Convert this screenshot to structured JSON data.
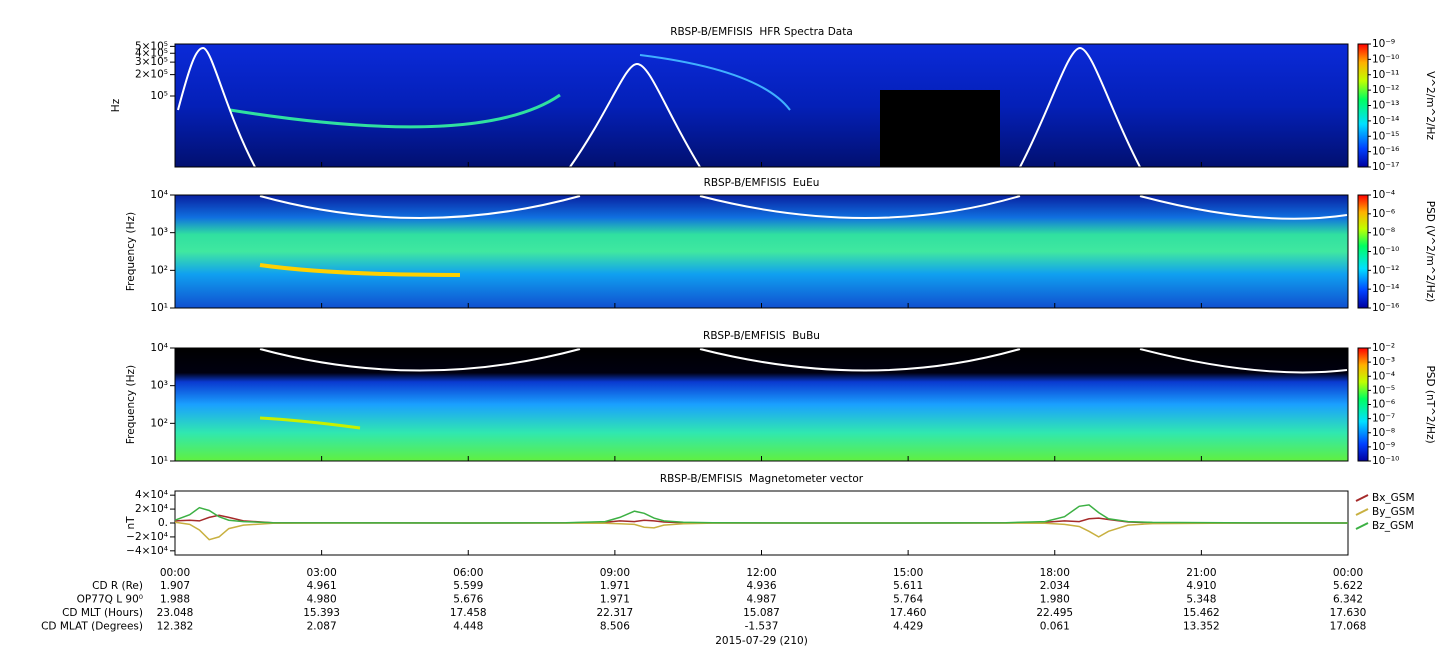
{
  "chart_data": [
    {
      "type": "spectrogram",
      "title": "RBSP-B/EMFISIS  HFR Spectra Data",
      "ylabel": "Hz",
      "log_y": true,
      "ylim": [
        10000,
        540000
      ],
      "yticks": [
        {
          "value": 500000,
          "label": "5×10⁵"
        },
        {
          "value": 400000,
          "label": "4×10⁵"
        },
        {
          "value": 300000,
          "label": "3×10⁵"
        },
        {
          "value": 200000,
          "label": "2×10⁵"
        },
        {
          "value": 100000,
          "label": "10⁵"
        }
      ],
      "colorbar": {
        "label": "V^2/m^2/Hz",
        "zlim": [
          1e-17,
          1e-09
        ],
        "ticks": [
          {
            "value": 1e-09,
            "label": "10⁻⁹"
          },
          {
            "value": 1e-10,
            "label": "10⁻¹⁰"
          },
          {
            "value": 1e-11,
            "label": "10⁻¹¹"
          },
          {
            "value": 1e-12,
            "label": "10⁻¹²"
          },
          {
            "value": 1e-13,
            "label": "10⁻¹³"
          },
          {
            "value": 1e-14,
            "label": "10⁻¹⁴"
          },
          {
            "value": 1e-15,
            "label": "10⁻¹⁵"
          },
          {
            "value": 1e-16,
            "label": "10⁻¹⁶"
          },
          {
            "value": 1e-17,
            "label": "10⁻¹⁷"
          }
        ]
      }
    },
    {
      "type": "spectrogram",
      "title": "RBSP-B/EMFISIS  EuEu",
      "ylabel": "Frequency (Hz)",
      "log_y": true,
      "ylim": [
        10,
        10000
      ],
      "yticks": [
        {
          "value": 10000,
          "label": "10⁴"
        },
        {
          "value": 1000,
          "label": "10³"
        },
        {
          "value": 100,
          "label": "10²"
        },
        {
          "value": 10,
          "label": "10¹"
        }
      ],
      "colorbar": {
        "label": "PSD (V^2/m^2/Hz)",
        "zlim": [
          1e-16,
          0.0001
        ],
        "ticks": [
          {
            "value": 0.0001,
            "label": "10⁻⁴"
          },
          {
            "value": 1e-06,
            "label": "10⁻⁶"
          },
          {
            "value": 1e-08,
            "label": "10⁻⁸"
          },
          {
            "value": 1e-10,
            "label": "10⁻¹⁰"
          },
          {
            "value": 1e-12,
            "label": "10⁻¹²"
          },
          {
            "value": 1e-14,
            "label": "10⁻¹⁴"
          },
          {
            "value": 1e-16,
            "label": "10⁻¹⁶"
          }
        ]
      }
    },
    {
      "type": "spectrogram",
      "title": "RBSP-B/EMFISIS  BuBu",
      "ylabel": "Frequency (Hz)",
      "log_y": true,
      "ylim": [
        10,
        10000
      ],
      "yticks": [
        {
          "value": 10000,
          "label": "10⁴"
        },
        {
          "value": 1000,
          "label": "10³"
        },
        {
          "value": 100,
          "label": "10²"
        },
        {
          "value": 10,
          "label": "10¹"
        }
      ],
      "colorbar": {
        "label": "PSD (nT^2/Hz)",
        "zlim": [
          1e-10,
          0.01
        ],
        "ticks": [
          {
            "value": 0.01,
            "label": "10⁻²"
          },
          {
            "value": 0.001,
            "label": "10⁻³"
          },
          {
            "value": 0.0001,
            "label": "10⁻⁴"
          },
          {
            "value": 1e-05,
            "label": "10⁻⁵"
          },
          {
            "value": 1e-06,
            "label": "10⁻⁶"
          },
          {
            "value": 1e-07,
            "label": "10⁻⁷"
          },
          {
            "value": 1e-08,
            "label": "10⁻⁸"
          },
          {
            "value": 1e-09,
            "label": "10⁻⁹"
          },
          {
            "value": 1e-10,
            "label": "10⁻¹⁰"
          }
        ]
      }
    },
    {
      "type": "line",
      "title": "RBSP-B/EMFISIS  Magnetometer vector",
      "ylabel": "nT",
      "xlabel": "2015-07-29 (210)",
      "ylim": [
        -46000,
        46000
      ],
      "yticks": [
        {
          "value": 40000,
          "label": "4×10⁴"
        },
        {
          "value": 20000,
          "label": "2×10⁴"
        },
        {
          "value": 0,
          "label": "0."
        },
        {
          "value": -20000,
          "label": "−2×10⁴"
        },
        {
          "value": -40000,
          "label": "−4×10⁴"
        }
      ],
      "xlim": [
        0,
        24
      ],
      "xticks": [
        {
          "value": 0,
          "label": "00:00"
        },
        {
          "value": 3,
          "label": "03:00"
        },
        {
          "value": 6,
          "label": "06:00"
        },
        {
          "value": 9,
          "label": "09:00"
        },
        {
          "value": 12,
          "label": "12:00"
        },
        {
          "value": 15,
          "label": "15:00"
        },
        {
          "value": 18,
          "label": "18:00"
        },
        {
          "value": 21,
          "label": "21:00"
        },
        {
          "value": 24,
          "label": "00:00"
        }
      ],
      "x": [
        0,
        0.3,
        0.5,
        0.7,
        0.9,
        1.1,
        1.4,
        2,
        4,
        6,
        8,
        8.8,
        9.1,
        9.4,
        9.6,
        9.8,
        10,
        10.4,
        11,
        13,
        15,
        17,
        17.8,
        18.2,
        18.5,
        18.7,
        18.9,
        19.1,
        19.5,
        20,
        22,
        24
      ],
      "series": [
        {
          "name": "Bx_GSM",
          "color": "#a52a2a",
          "values": [
            3000,
            4000,
            3000,
            8000,
            11000,
            8000,
            3000,
            500,
            100,
            0,
            200,
            1000,
            3000,
            2000,
            4000,
            3000,
            1500,
            500,
            100,
            0,
            0,
            200,
            1000,
            3000,
            2000,
            6000,
            7000,
            5000,
            1500,
            400,
            0,
            0
          ]
        },
        {
          "name": "By_GSM",
          "color": "#c8b040",
          "values": [
            1000,
            -2000,
            -10000,
            -24000,
            -20000,
            -8000,
            -3000,
            -500,
            0,
            0,
            -200,
            -500,
            -1000,
            -2000,
            -6000,
            -7000,
            -3000,
            -1000,
            -200,
            0,
            0,
            -200,
            -500,
            -2000,
            -5000,
            -12000,
            -20000,
            -12000,
            -3000,
            -800,
            0,
            0
          ]
        },
        {
          "name": "Bz_GSM",
          "color": "#3cb043",
          "values": [
            4000,
            12000,
            22000,
            18000,
            9000,
            4000,
            2000,
            500,
            100,
            50,
            500,
            2000,
            8000,
            17000,
            14000,
            7000,
            3000,
            1000,
            300,
            50,
            50,
            400,
            2000,
            9000,
            24000,
            26000,
            15000,
            6000,
            2000,
            800,
            100,
            50
          ]
        }
      ]
    }
  ],
  "ephemeris": {
    "rows": [
      {
        "label": "CD R (Re)",
        "values": [
          "1.907",
          "4.961",
          "5.599",
          "1.971",
          "4.936",
          "5.611",
          "2.034",
          "4.910",
          "5.622"
        ]
      },
      {
        "label": "OP77Q L 90⁰",
        "values": [
          "1.988",
          "4.980",
          "5.676",
          "1.971",
          "4.987",
          "5.764",
          "1.980",
          "5.348",
          "6.342"
        ]
      },
      {
        "label": "CD MLT (Hours)",
        "values": [
          "23.048",
          "15.393",
          "17.458",
          "22.317",
          "15.087",
          "17.460",
          "22.495",
          "15.462",
          "17.630"
        ]
      },
      {
        "label": "CD MLAT (Degrees)",
        "values": [
          "12.382",
          "2.087",
          "4.448",
          "8.506",
          "-1.537",
          "4.429",
          "0.061",
          "13.352",
          "17.068"
        ]
      }
    ]
  }
}
